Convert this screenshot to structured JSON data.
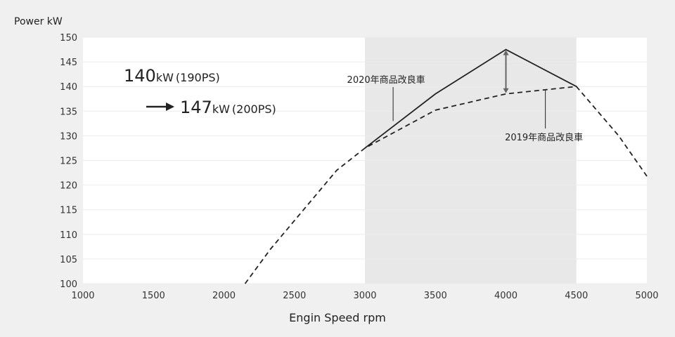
{
  "chart_data": {
    "type": "line",
    "ylabel": "Power kW",
    "xlabel": "Engin Speed rpm",
    "xlim": [
      1000,
      5000
    ],
    "ylim": [
      100,
      150
    ],
    "x_ticks": [
      "1000",
      "1500",
      "2000",
      "2500",
      "3000",
      "3500",
      "4000",
      "4500",
      "5000"
    ],
    "y_ticks": [
      "150",
      "145",
      "140",
      "135",
      "130",
      "125",
      "120",
      "115",
      "110",
      "105",
      "100"
    ],
    "highlight_range": [
      3000,
      4500
    ],
    "series": [
      {
        "name": "2020年商品改良車",
        "style": "solid",
        "x": [
          3000,
          3500,
          4000,
          4500
        ],
        "y": [
          127.5,
          138.5,
          147.5,
          140
        ]
      },
      {
        "name": "2019年商品改良車",
        "style": "dashed",
        "x": [
          2150,
          2330,
          2800,
          3000,
          3500,
          4000,
          4500,
          4800,
          5000
        ],
        "y": [
          100,
          107,
          123,
          127.5,
          135.2,
          138.5,
          140,
          130,
          121.8
        ]
      }
    ],
    "difference_arrow": {
      "x": 4000,
      "from": 138.5,
      "to": 147.5
    },
    "callout": {
      "line1_value": "140",
      "line1_unit": "kW",
      "line1_ps": "(190PS)",
      "line2_value": "147",
      "line2_unit": "kW",
      "line2_ps": "(200PS)"
    },
    "colors": {
      "page": "#f0f0f0",
      "plot": "#ffffff",
      "highlight": "#e8e8e8",
      "grid": "#ececec",
      "line": "#222222",
      "arrow": "#666666"
    }
  }
}
